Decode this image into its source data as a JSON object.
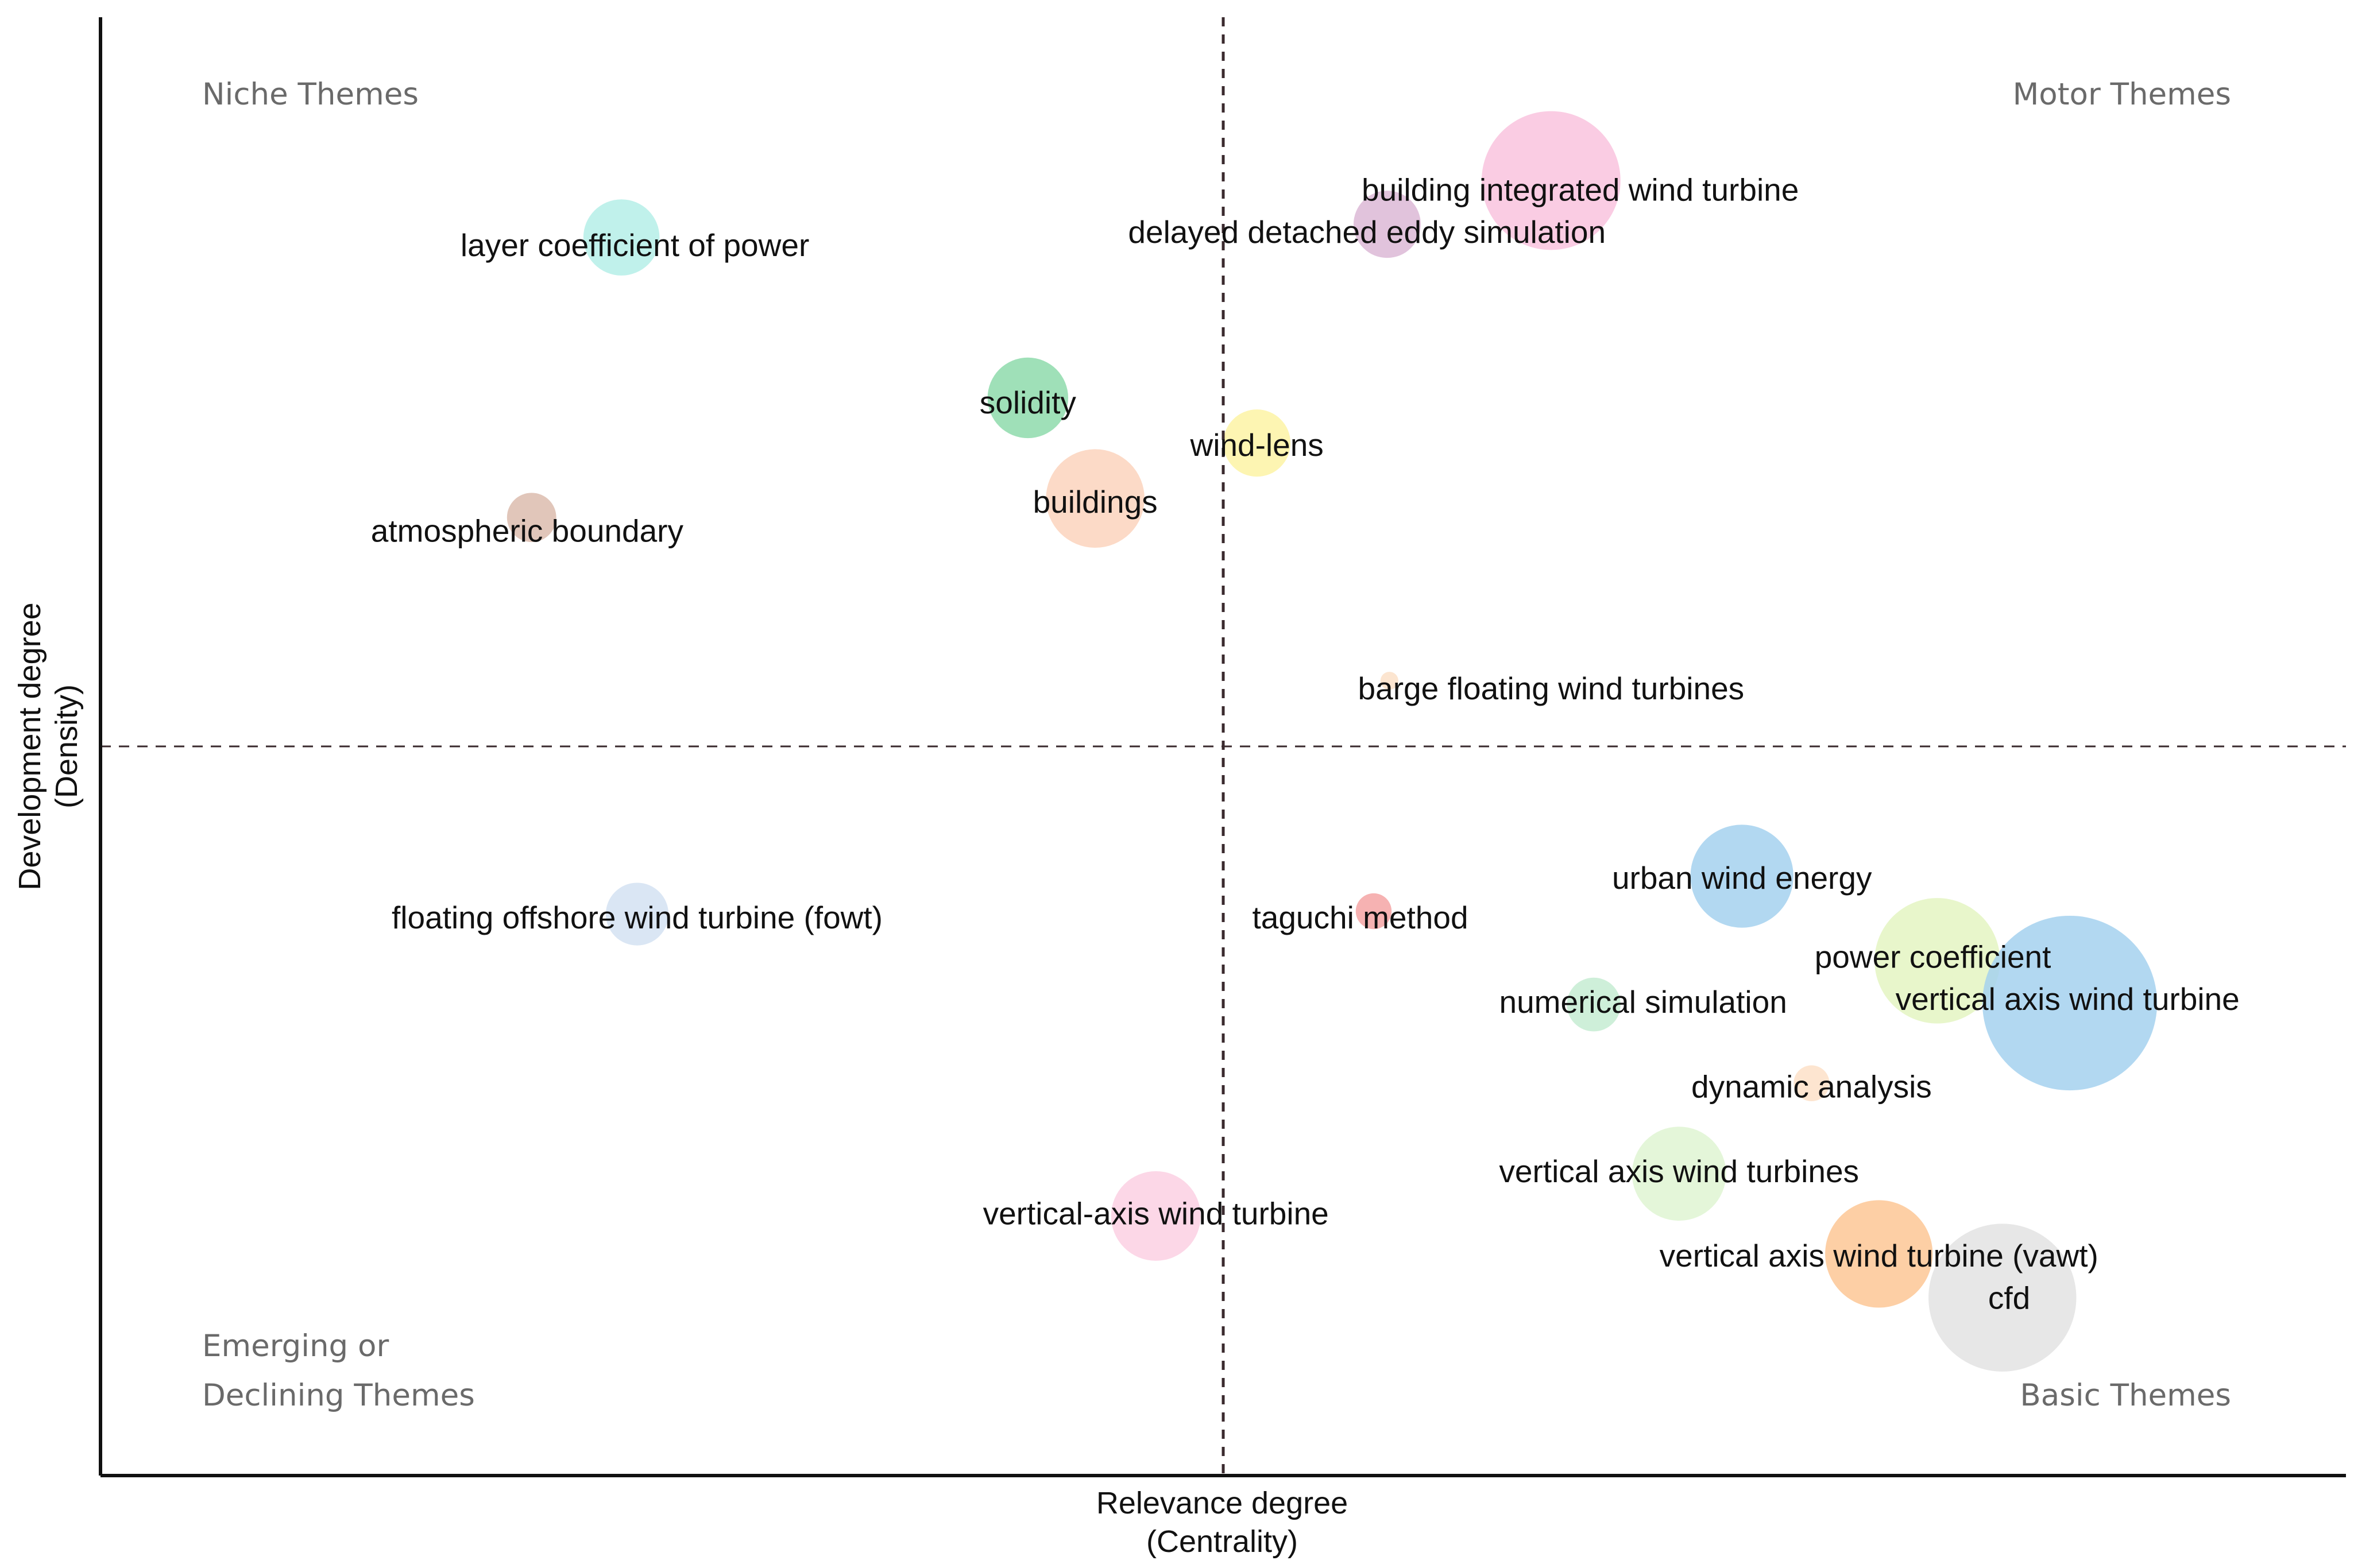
{
  "chart_data": {
    "type": "scatter",
    "subtype": "bubble-thematic-map",
    "xlabel": "Relevance degree",
    "xlabel_sub": "(Centrality)",
    "ylabel": "Development degree",
    "ylabel_sub": "(Density)",
    "xlim": [
      0,
      100
    ],
    "ylim": [
      0,
      100
    ],
    "grid": false,
    "divider_x": 50,
    "divider_y": 50,
    "quadrants": {
      "top_left": "Niche Themes",
      "top_right": "Motor Themes",
      "bottom_left_line1": "Emerging or",
      "bottom_left_line2": "Declining Themes",
      "bottom_right": "Basic Themes"
    },
    "points": [
      {
        "label": "building integrated wind turbine",
        "x": 64.6,
        "y": 88.8,
        "size": 31,
        "color": "#f9c3de"
      },
      {
        "label": "delayed detached eddy simulation",
        "x": 57.3,
        "y": 85.8,
        "size": 15,
        "color": "#dcb8d6"
      },
      {
        "label": "layer coefficient of power",
        "x": 23.2,
        "y": 84.9,
        "size": 17,
        "color": "#b5eee8"
      },
      {
        "label": "solidity",
        "x": 41.3,
        "y": 73.9,
        "size": 18,
        "color": "#8edaab"
      },
      {
        "label": "wind-lens",
        "x": 51.5,
        "y": 70.8,
        "size": 15,
        "color": "#fdf3a4"
      },
      {
        "label": "buildings",
        "x": 44.3,
        "y": 67.0,
        "size": 22,
        "color": "#fcd4bd"
      },
      {
        "label": "atmospheric boundary",
        "x": 19.2,
        "y": 65.7,
        "size": 11,
        "color": "#dcbcae"
      },
      {
        "label": "barge  floating wind turbines",
        "x": 57.4,
        "y": 54.5,
        "size": 4,
        "color": "#fbe1c8"
      },
      {
        "label": "urban wind energy",
        "x": 73.1,
        "y": 41.1,
        "size": 23,
        "color": "#a5d1ee"
      },
      {
        "label": "floating offshore wind turbine (fowt)",
        "x": 23.9,
        "y": 38.5,
        "size": 14,
        "color": "#d4e2f2"
      },
      {
        "label": "taguchi method",
        "x": 56.7,
        "y": 38.7,
        "size": 8,
        "color": "#f4a5a5"
      },
      {
        "label": "power coefficient",
        "x": 81.8,
        "y": 35.3,
        "size": 28,
        "color": "#e4f5c2"
      },
      {
        "label": "numerical simulation",
        "x": 66.5,
        "y": 32.3,
        "size": 12,
        "color": "#c6ecd2"
      },
      {
        "label": "vertical axis wind turbine",
        "x": 87.7,
        "y": 32.4,
        "size": 39,
        "color": "#a5d1ee"
      },
      {
        "label": "dynamic analysis",
        "x": 76.2,
        "y": 26.9,
        "size": 8,
        "color": "#fde0c8"
      },
      {
        "label": "vertical axis wind turbines",
        "x": 70.3,
        "y": 20.7,
        "size": 21,
        "color": "#dff4d2"
      },
      {
        "label": "vertical-axis wind turbine",
        "x": 47.0,
        "y": 17.8,
        "size": 20,
        "color": "#fbd0e3"
      },
      {
        "label": "vertical axis wind turbine (vawt)",
        "x": 79.2,
        "y": 15.2,
        "size": 24,
        "color": "#fdc795"
      },
      {
        "label": "cfd",
        "x": 84.7,
        "y": 12.2,
        "size": 33,
        "color": "#e3e3e3"
      }
    ],
    "labels_pos": [
      {
        "label": "building integrated wind turbine",
        "x": 65.9,
        "y": 88.0,
        "anchor": "middle"
      },
      {
        "label": "delayed detached eddy simulation",
        "x": 56.4,
        "y": 85.1,
        "anchor": "middle"
      },
      {
        "label": "layer coefficient of power",
        "x": 23.8,
        "y": 84.2,
        "anchor": "middle"
      },
      {
        "label": "solidity",
        "x": 41.3,
        "y": 73.4,
        "anchor": "middle"
      },
      {
        "label": "wind-lens",
        "x": 51.5,
        "y": 70.5,
        "anchor": "middle"
      },
      {
        "label": "buildings",
        "x": 44.3,
        "y": 66.6,
        "anchor": "middle"
      },
      {
        "label": "atmospheric boundary",
        "x": 19.0,
        "y": 64.6,
        "anchor": "middle"
      },
      {
        "label": "barge  floating wind turbines",
        "x": 64.6,
        "y": 53.8,
        "anchor": "middle"
      },
      {
        "label": "urban wind energy",
        "x": 73.1,
        "y": 40.8,
        "anchor": "middle"
      },
      {
        "label": "floating offshore wind turbine (fowt)",
        "x": 23.9,
        "y": 38.1,
        "anchor": "middle"
      },
      {
        "label": "taguchi method",
        "x": 56.1,
        "y": 38.1,
        "anchor": "middle"
      },
      {
        "label": "power coefficient",
        "x": 81.6,
        "y": 35.4,
        "anchor": "middle"
      },
      {
        "label": "numerical simulation",
        "x": 68.7,
        "y": 32.3,
        "anchor": "middle"
      },
      {
        "label": "vertical axis wind turbine",
        "x": 87.6,
        "y": 32.5,
        "anchor": "middle"
      },
      {
        "label": "dynamic analysis",
        "x": 76.2,
        "y": 26.5,
        "anchor": "middle"
      },
      {
        "label": "vertical axis wind turbines",
        "x": 70.3,
        "y": 20.7,
        "anchor": "middle"
      },
      {
        "label": "vertical-axis wind turbine",
        "x": 47.0,
        "y": 17.8,
        "anchor": "middle"
      },
      {
        "label": "vertical axis wind turbine (vawt)",
        "x": 79.2,
        "y": 14.9,
        "anchor": "middle"
      },
      {
        "label": "cfd",
        "x": 85.0,
        "y": 12.0,
        "anchor": "middle"
      }
    ]
  }
}
